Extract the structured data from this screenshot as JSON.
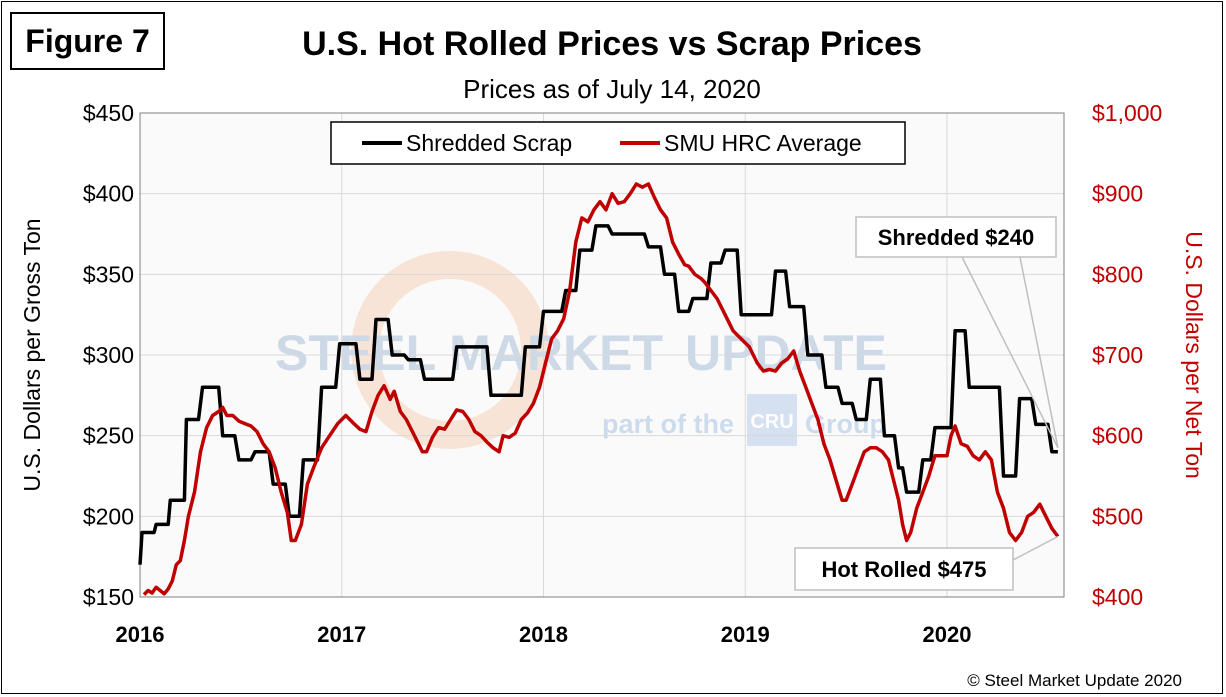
{
  "figure_label": "Figure 7",
  "copyright": "© Steel Market Update 2020",
  "watermark": {
    "brand_left": "STEEL MARKET",
    "brand_right": "UPDATE",
    "sub_left": "part of the",
    "sub_logo": "CRU",
    "sub_right": "Group"
  },
  "colors": {
    "scrap": "#000000",
    "hrc": "#c00000",
    "plot_bg": "#fafafa",
    "grid": "#d9d9d9"
  },
  "chart_data": {
    "type": "line",
    "title": "U.S. Hot Rolled Prices vs Scrap Prices",
    "subtitle": "Prices as of July 14, 2020",
    "ylabel": "U.S. Dollars per Gross Ton",
    "y2label": "U.S. Dollars per Net Ton",
    "ylim": [
      150,
      450
    ],
    "y2lim": [
      400,
      1000
    ],
    "xlim": [
      2016.0,
      2020.58
    ],
    "y_ticks": [
      {
        "value": 150,
        "label": "$150"
      },
      {
        "value": 200,
        "label": "$200"
      },
      {
        "value": 250,
        "label": "$250"
      },
      {
        "value": 300,
        "label": "$300"
      },
      {
        "value": 350,
        "label": "$350"
      },
      {
        "value": 400,
        "label": "$400"
      },
      {
        "value": 450,
        "label": "$450"
      }
    ],
    "y2_ticks": [
      {
        "value": 400,
        "label": "$400"
      },
      {
        "value": 500,
        "label": "$500"
      },
      {
        "value": 600,
        "label": "$600"
      },
      {
        "value": 700,
        "label": "$700"
      },
      {
        "value": 800,
        "label": "$800"
      },
      {
        "value": 900,
        "label": "$900"
      },
      {
        "value": 1000,
        "label": "$1,000"
      }
    ],
    "x_ticks": [
      {
        "value": 2016,
        "label": "2016"
      },
      {
        "value": 2017,
        "label": "2017"
      },
      {
        "value": 2018,
        "label": "2018"
      },
      {
        "value": 2019,
        "label": "2019"
      },
      {
        "value": 2020,
        "label": "2020"
      }
    ],
    "grid": true,
    "legend_position": "top-center",
    "series": [
      {
        "name": "Shredded Scrap",
        "axis": "left",
        "step": true,
        "points": [
          [
            2016.0,
            170
          ],
          [
            2016.01,
            190
          ],
          [
            2016.07,
            190
          ],
          [
            2016.08,
            195
          ],
          [
            2016.14,
            195
          ],
          [
            2016.15,
            210
          ],
          [
            2016.22,
            210
          ],
          [
            2016.23,
            260
          ],
          [
            2016.29,
            260
          ],
          [
            2016.31,
            280
          ],
          [
            2016.39,
            280
          ],
          [
            2016.41,
            250
          ],
          [
            2016.47,
            250
          ],
          [
            2016.49,
            235
          ],
          [
            2016.55,
            235
          ],
          [
            2016.57,
            240
          ],
          [
            2016.64,
            240
          ],
          [
            2016.66,
            220
          ],
          [
            2016.72,
            220
          ],
          [
            2016.74,
            200
          ],
          [
            2016.79,
            200
          ],
          [
            2016.81,
            235
          ],
          [
            2016.88,
            235
          ],
          [
            2016.9,
            280
          ],
          [
            2016.97,
            280
          ],
          [
            2016.99,
            307
          ],
          [
            2017.07,
            307
          ],
          [
            2017.09,
            285
          ],
          [
            2017.15,
            285
          ],
          [
            2017.17,
            322
          ],
          [
            2017.23,
            322
          ],
          [
            2017.25,
            300
          ],
          [
            2017.31,
            300
          ],
          [
            2017.33,
            297
          ],
          [
            2017.39,
            297
          ],
          [
            2017.41,
            285
          ],
          [
            2017.55,
            285
          ],
          [
            2017.57,
            305
          ],
          [
            2017.72,
            305
          ],
          [
            2017.74,
            275
          ],
          [
            2017.89,
            275
          ],
          [
            2017.91,
            305
          ],
          [
            2017.98,
            305
          ],
          [
            2018.0,
            327
          ],
          [
            2018.09,
            327
          ],
          [
            2018.11,
            340
          ],
          [
            2018.16,
            340
          ],
          [
            2018.18,
            365
          ],
          [
            2018.24,
            365
          ],
          [
            2018.26,
            380
          ],
          [
            2018.32,
            380
          ],
          [
            2018.34,
            375
          ],
          [
            2018.5,
            375
          ],
          [
            2018.52,
            367
          ],
          [
            2018.58,
            367
          ],
          [
            2018.6,
            350
          ],
          [
            2018.65,
            350
          ],
          [
            2018.67,
            327
          ],
          [
            2018.72,
            327
          ],
          [
            2018.74,
            335
          ],
          [
            2018.81,
            335
          ],
          [
            2018.83,
            357
          ],
          [
            2018.88,
            357
          ],
          [
            2018.9,
            365
          ],
          [
            2018.96,
            365
          ],
          [
            2018.98,
            325
          ],
          [
            2019.13,
            325
          ],
          [
            2019.15,
            352
          ],
          [
            2019.2,
            352
          ],
          [
            2019.22,
            330
          ],
          [
            2019.29,
            330
          ],
          [
            2019.31,
            300
          ],
          [
            2019.38,
            300
          ],
          [
            2019.4,
            280
          ],
          [
            2019.46,
            280
          ],
          [
            2019.48,
            270
          ],
          [
            2019.53,
            270
          ],
          [
            2019.55,
            260
          ],
          [
            2019.6,
            260
          ],
          [
            2019.62,
            285
          ],
          [
            2019.67,
            285
          ],
          [
            2019.69,
            250
          ],
          [
            2019.74,
            250
          ],
          [
            2019.76,
            230
          ],
          [
            2019.78,
            230
          ],
          [
            2019.8,
            215
          ],
          [
            2019.86,
            215
          ],
          [
            2019.88,
            235
          ],
          [
            2019.92,
            235
          ],
          [
            2019.94,
            255
          ],
          [
            2020.02,
            255
          ],
          [
            2020.04,
            315
          ],
          [
            2020.09,
            315
          ],
          [
            2020.11,
            280
          ],
          [
            2020.26,
            280
          ],
          [
            2020.28,
            225
          ],
          [
            2020.34,
            225
          ],
          [
            2020.36,
            273
          ],
          [
            2020.42,
            273
          ],
          [
            2020.44,
            257
          ],
          [
            2020.5,
            257
          ],
          [
            2020.52,
            240
          ],
          [
            2020.55,
            240
          ]
        ]
      },
      {
        "name": "SMU HRC Average",
        "axis": "right",
        "step": false,
        "points": [
          [
            2016.02,
            403
          ],
          [
            2016.04,
            408
          ],
          [
            2016.06,
            405
          ],
          [
            2016.08,
            412
          ],
          [
            2016.1,
            408
          ],
          [
            2016.12,
            404
          ],
          [
            2016.14,
            410
          ],
          [
            2016.16,
            420
          ],
          [
            2016.18,
            440
          ],
          [
            2016.2,
            445
          ],
          [
            2016.22,
            470
          ],
          [
            2016.24,
            500
          ],
          [
            2016.27,
            530
          ],
          [
            2016.3,
            580
          ],
          [
            2016.33,
            610
          ],
          [
            2016.36,
            625
          ],
          [
            2016.39,
            630
          ],
          [
            2016.41,
            635
          ],
          [
            2016.43,
            625
          ],
          [
            2016.46,
            625
          ],
          [
            2016.49,
            618
          ],
          [
            2016.52,
            615
          ],
          [
            2016.55,
            612
          ],
          [
            2016.58,
            605
          ],
          [
            2016.61,
            590
          ],
          [
            2016.64,
            580
          ],
          [
            2016.67,
            560
          ],
          [
            2016.7,
            530
          ],
          [
            2016.73,
            505
          ],
          [
            2016.75,
            470
          ],
          [
            2016.77,
            470
          ],
          [
            2016.8,
            490
          ],
          [
            2016.83,
            540
          ],
          [
            2016.86,
            560
          ],
          [
            2016.9,
            585
          ],
          [
            2016.94,
            600
          ],
          [
            2016.98,
            615
          ],
          [
            2017.02,
            625
          ],
          [
            2017.06,
            615
          ],
          [
            2017.09,
            608
          ],
          [
            2017.12,
            605
          ],
          [
            2017.15,
            630
          ],
          [
            2017.18,
            650
          ],
          [
            2017.21,
            662
          ],
          [
            2017.24,
            645
          ],
          [
            2017.26,
            655
          ],
          [
            2017.29,
            630
          ],
          [
            2017.32,
            620
          ],
          [
            2017.35,
            605
          ],
          [
            2017.38,
            590
          ],
          [
            2017.4,
            580
          ],
          [
            2017.42,
            580
          ],
          [
            2017.45,
            598
          ],
          [
            2017.48,
            610
          ],
          [
            2017.51,
            608
          ],
          [
            2017.54,
            620
          ],
          [
            2017.57,
            632
          ],
          [
            2017.6,
            630
          ],
          [
            2017.63,
            620
          ],
          [
            2017.66,
            605
          ],
          [
            2017.69,
            600
          ],
          [
            2017.72,
            592
          ],
          [
            2017.75,
            585
          ],
          [
            2017.78,
            580
          ],
          [
            2017.8,
            600
          ],
          [
            2017.83,
            598
          ],
          [
            2017.86,
            603
          ],
          [
            2017.89,
            620
          ],
          [
            2017.92,
            628
          ],
          [
            2017.95,
            640
          ],
          [
            2017.98,
            660
          ],
          [
            2018.01,
            690
          ],
          [
            2018.04,
            720
          ],
          [
            2018.07,
            730
          ],
          [
            2018.1,
            745
          ],
          [
            2018.13,
            780
          ],
          [
            2018.16,
            840
          ],
          [
            2018.19,
            870
          ],
          [
            2018.22,
            865
          ],
          [
            2018.25,
            880
          ],
          [
            2018.28,
            890
          ],
          [
            2018.31,
            880
          ],
          [
            2018.34,
            900
          ],
          [
            2018.37,
            888
          ],
          [
            2018.4,
            890
          ],
          [
            2018.43,
            900
          ],
          [
            2018.46,
            912
          ],
          [
            2018.49,
            908
          ],
          [
            2018.52,
            912
          ],
          [
            2018.55,
            895
          ],
          [
            2018.58,
            880
          ],
          [
            2018.61,
            870
          ],
          [
            2018.64,
            840
          ],
          [
            2018.67,
            825
          ],
          [
            2018.7,
            812
          ],
          [
            2018.72,
            810
          ],
          [
            2018.75,
            800
          ],
          [
            2018.78,
            795
          ],
          [
            2018.8,
            790
          ],
          [
            2018.83,
            780
          ],
          [
            2018.86,
            770
          ],
          [
            2018.9,
            750
          ],
          [
            2018.94,
            730
          ],
          [
            2018.98,
            720
          ],
          [
            2019.02,
            710
          ],
          [
            2019.06,
            690
          ],
          [
            2019.09,
            680
          ],
          [
            2019.12,
            682
          ],
          [
            2019.15,
            680
          ],
          [
            2019.18,
            690
          ],
          [
            2019.21,
            695
          ],
          [
            2019.24,
            705
          ],
          [
            2019.27,
            680
          ],
          [
            2019.3,
            660
          ],
          [
            2019.33,
            640
          ],
          [
            2019.36,
            620
          ],
          [
            2019.39,
            590
          ],
          [
            2019.42,
            570
          ],
          [
            2019.45,
            545
          ],
          [
            2019.48,
            520
          ],
          [
            2019.5,
            520
          ],
          [
            2019.53,
            540
          ],
          [
            2019.56,
            560
          ],
          [
            2019.59,
            580
          ],
          [
            2019.62,
            585
          ],
          [
            2019.65,
            585
          ],
          [
            2019.68,
            580
          ],
          [
            2019.71,
            570
          ],
          [
            2019.73,
            550
          ],
          [
            2019.76,
            520
          ],
          [
            2019.78,
            490
          ],
          [
            2019.8,
            470
          ],
          [
            2019.82,
            480
          ],
          [
            2019.85,
            510
          ],
          [
            2019.88,
            530
          ],
          [
            2019.91,
            550
          ],
          [
            2019.94,
            575
          ],
          [
            2019.97,
            575
          ],
          [
            2020.0,
            575
          ],
          [
            2020.02,
            600
          ],
          [
            2020.04,
            612
          ],
          [
            2020.07,
            590
          ],
          [
            2020.1,
            587
          ],
          [
            2020.13,
            575
          ],
          [
            2020.16,
            570
          ],
          [
            2020.19,
            580
          ],
          [
            2020.22,
            570
          ],
          [
            2020.25,
            530
          ],
          [
            2020.28,
            510
          ],
          [
            2020.31,
            480
          ],
          [
            2020.34,
            470
          ],
          [
            2020.37,
            480
          ],
          [
            2020.4,
            500
          ],
          [
            2020.43,
            505
          ],
          [
            2020.46,
            515
          ],
          [
            2020.49,
            500
          ],
          [
            2020.52,
            485
          ],
          [
            2020.55,
            475
          ]
        ]
      }
    ],
    "annotations": [
      {
        "text": "Shredded $240",
        "target_series": "Shredded Scrap",
        "x": 2020.55,
        "y": 240
      },
      {
        "text": "Hot Rolled $475",
        "target_series": "SMU HRC Average",
        "x": 2020.55,
        "y": 475
      }
    ]
  }
}
